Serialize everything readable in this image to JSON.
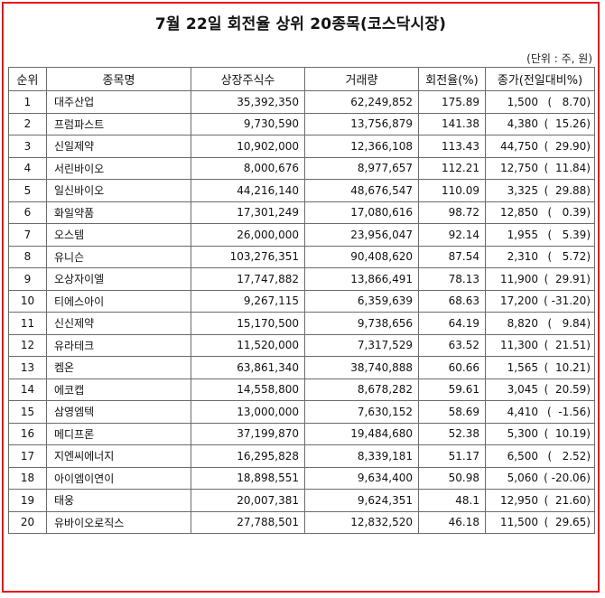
{
  "title": "7월 22일 회전율 상위 20종목(코스닥시장)",
  "unit_note": "(단위 : 주, 원)",
  "headers": [
    "순위",
    "종목명",
    "상장주식수",
    "거래량",
    "회전율(%)",
    "종가(전일대비%)"
  ],
  "rows": [
    {
      "rank": "1",
      "name": "대주산업",
      "listed": "35,392,350",
      "volume": "62,249,852",
      "turnover": "175.89",
      "price": "1,500",
      "change": "(   8.70)"
    },
    {
      "rank": "2",
      "name": "프럼파스트",
      "listed": "9,730,590",
      "volume": "13,756,879",
      "turnover": "141.38",
      "price": "4,380",
      "change": "(  15.26)"
    },
    {
      "rank": "3",
      "name": "신일제약",
      "listed": "10,902,000",
      "volume": "12,366,108",
      "turnover": "113.43",
      "price": "44,750",
      "change": "(  29.90)"
    },
    {
      "rank": "4",
      "name": "서린바이오",
      "listed": "8,000,676",
      "volume": "8,977,657",
      "turnover": "112.21",
      "price": "12,750",
      "change": "(  11.84)"
    },
    {
      "rank": "5",
      "name": "일신바이오",
      "listed": "44,216,140",
      "volume": "48,676,547",
      "turnover": "110.09",
      "price": "3,325",
      "change": "(  29.88)"
    },
    {
      "rank": "6",
      "name": "화일약품",
      "listed": "17,301,249",
      "volume": "17,080,616",
      "turnover": "98.72",
      "price": "12,850",
      "change": "(   0.39)"
    },
    {
      "rank": "7",
      "name": "오스템",
      "listed": "26,000,000",
      "volume": "23,956,047",
      "turnover": "92.14",
      "price": "1,955",
      "change": "(   5.39)"
    },
    {
      "rank": "8",
      "name": "유니슨",
      "listed": "103,276,351",
      "volume": "90,408,620",
      "turnover": "87.54",
      "price": "2,310",
      "change": "(   5.72)"
    },
    {
      "rank": "9",
      "name": "오상자이엘",
      "listed": "17,747,882",
      "volume": "13,866,491",
      "turnover": "78.13",
      "price": "11,900",
      "change": "(  29.91)"
    },
    {
      "rank": "10",
      "name": "티에스아이",
      "listed": "9,267,115",
      "volume": "6,359,639",
      "turnover": "68.63",
      "price": "17,200",
      "change": "( -31.20)"
    },
    {
      "rank": "11",
      "name": "신신제약",
      "listed": "15,170,500",
      "volume": "9,738,656",
      "turnover": "64.19",
      "price": "8,820",
      "change": "(   9.84)"
    },
    {
      "rank": "12",
      "name": "유라테크",
      "listed": "11,520,000",
      "volume": "7,317,529",
      "turnover": "63.52",
      "price": "11,300",
      "change": "(  21.51)"
    },
    {
      "rank": "13",
      "name": "켐온",
      "listed": "63,861,340",
      "volume": "38,740,888",
      "turnover": "60.66",
      "price": "1,565",
      "change": "(  10.21)"
    },
    {
      "rank": "14",
      "name": "에코캡",
      "listed": "14,558,800",
      "volume": "8,678,282",
      "turnover": "59.61",
      "price": "3,045",
      "change": "(  20.59)"
    },
    {
      "rank": "15",
      "name": "삼영엠텍",
      "listed": "13,000,000",
      "volume": "7,630,152",
      "turnover": "58.69",
      "price": "4,410",
      "change": "(  -1.56)"
    },
    {
      "rank": "16",
      "name": "메디프론",
      "listed": "37,199,870",
      "volume": "19,484,680",
      "turnover": "52.38",
      "price": "5,300",
      "change": "(  10.19)"
    },
    {
      "rank": "17",
      "name": "지엔씨에너지",
      "listed": "16,295,828",
      "volume": "8,339,181",
      "turnover": "51.17",
      "price": "6,500",
      "change": "(   2.52)"
    },
    {
      "rank": "18",
      "name": "아이엠이연이",
      "listed": "18,898,551",
      "volume": "9,634,400",
      "turnover": "50.98",
      "price": "5,060",
      "change": "( -20.06)"
    },
    {
      "rank": "19",
      "name": "태웅",
      "listed": "20,007,381",
      "volume": "9,624,351",
      "turnover": "48.1",
      "price": "12,950",
      "change": "(  21.60)"
    },
    {
      "rank": "20",
      "name": "유바이오로직스",
      "listed": "27,788,501",
      "volume": "12,832,520",
      "turnover": "46.18",
      "price": "11,500",
      "change": "(  29.65)"
    }
  ]
}
